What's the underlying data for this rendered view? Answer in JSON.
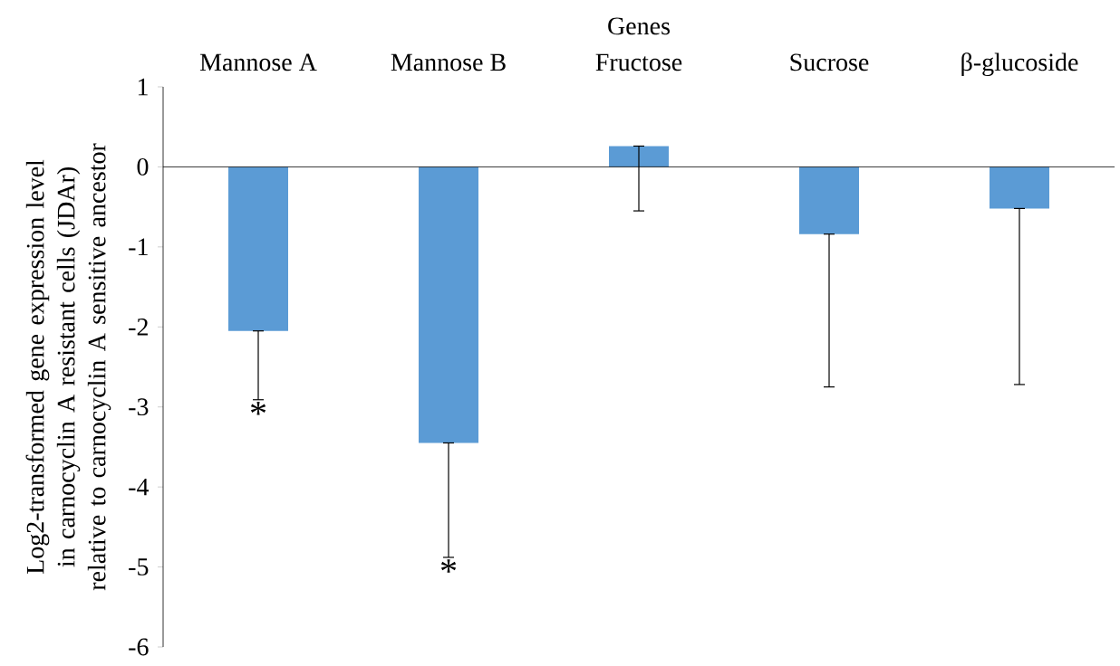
{
  "chart_data": {
    "type": "bar",
    "xlabel": "Genes",
    "ylabel": "Log2-transformed gene expression level in carnocyclin A resistant cells (JDAr) relative to carnocyclin A sensitive ancestor",
    "categories": [
      "Mannose A",
      "Mannose B",
      "Fructose",
      "Sucrose",
      "β-glucoside"
    ],
    "values": [
      -2.05,
      -3.45,
      0.26,
      -0.84,
      -0.52
    ],
    "errors": [
      [
        -2.91,
        -2.05
      ],
      [
        -4.88,
        -3.45
      ],
      [
        -0.55,
        0.26
      ],
      [
        -2.75,
        -0.84
      ],
      [
        -2.72,
        -0.52
      ]
    ],
    "color": "#5b9bd5",
    "ylim": [
      -6,
      1
    ],
    "yticks": [
      -6,
      -5,
      -4,
      -3,
      -2,
      -1,
      0,
      1
    ],
    "ref_lines": [
      {
        "axis": "y",
        "value": 0,
        "color": "#000000"
      }
    ],
    "annotations": [
      {
        "text": "*",
        "x": "Mannose A",
        "y": -2.91
      },
      {
        "text": "*",
        "x": "Mannose B",
        "y": -4.88
      }
    ]
  }
}
